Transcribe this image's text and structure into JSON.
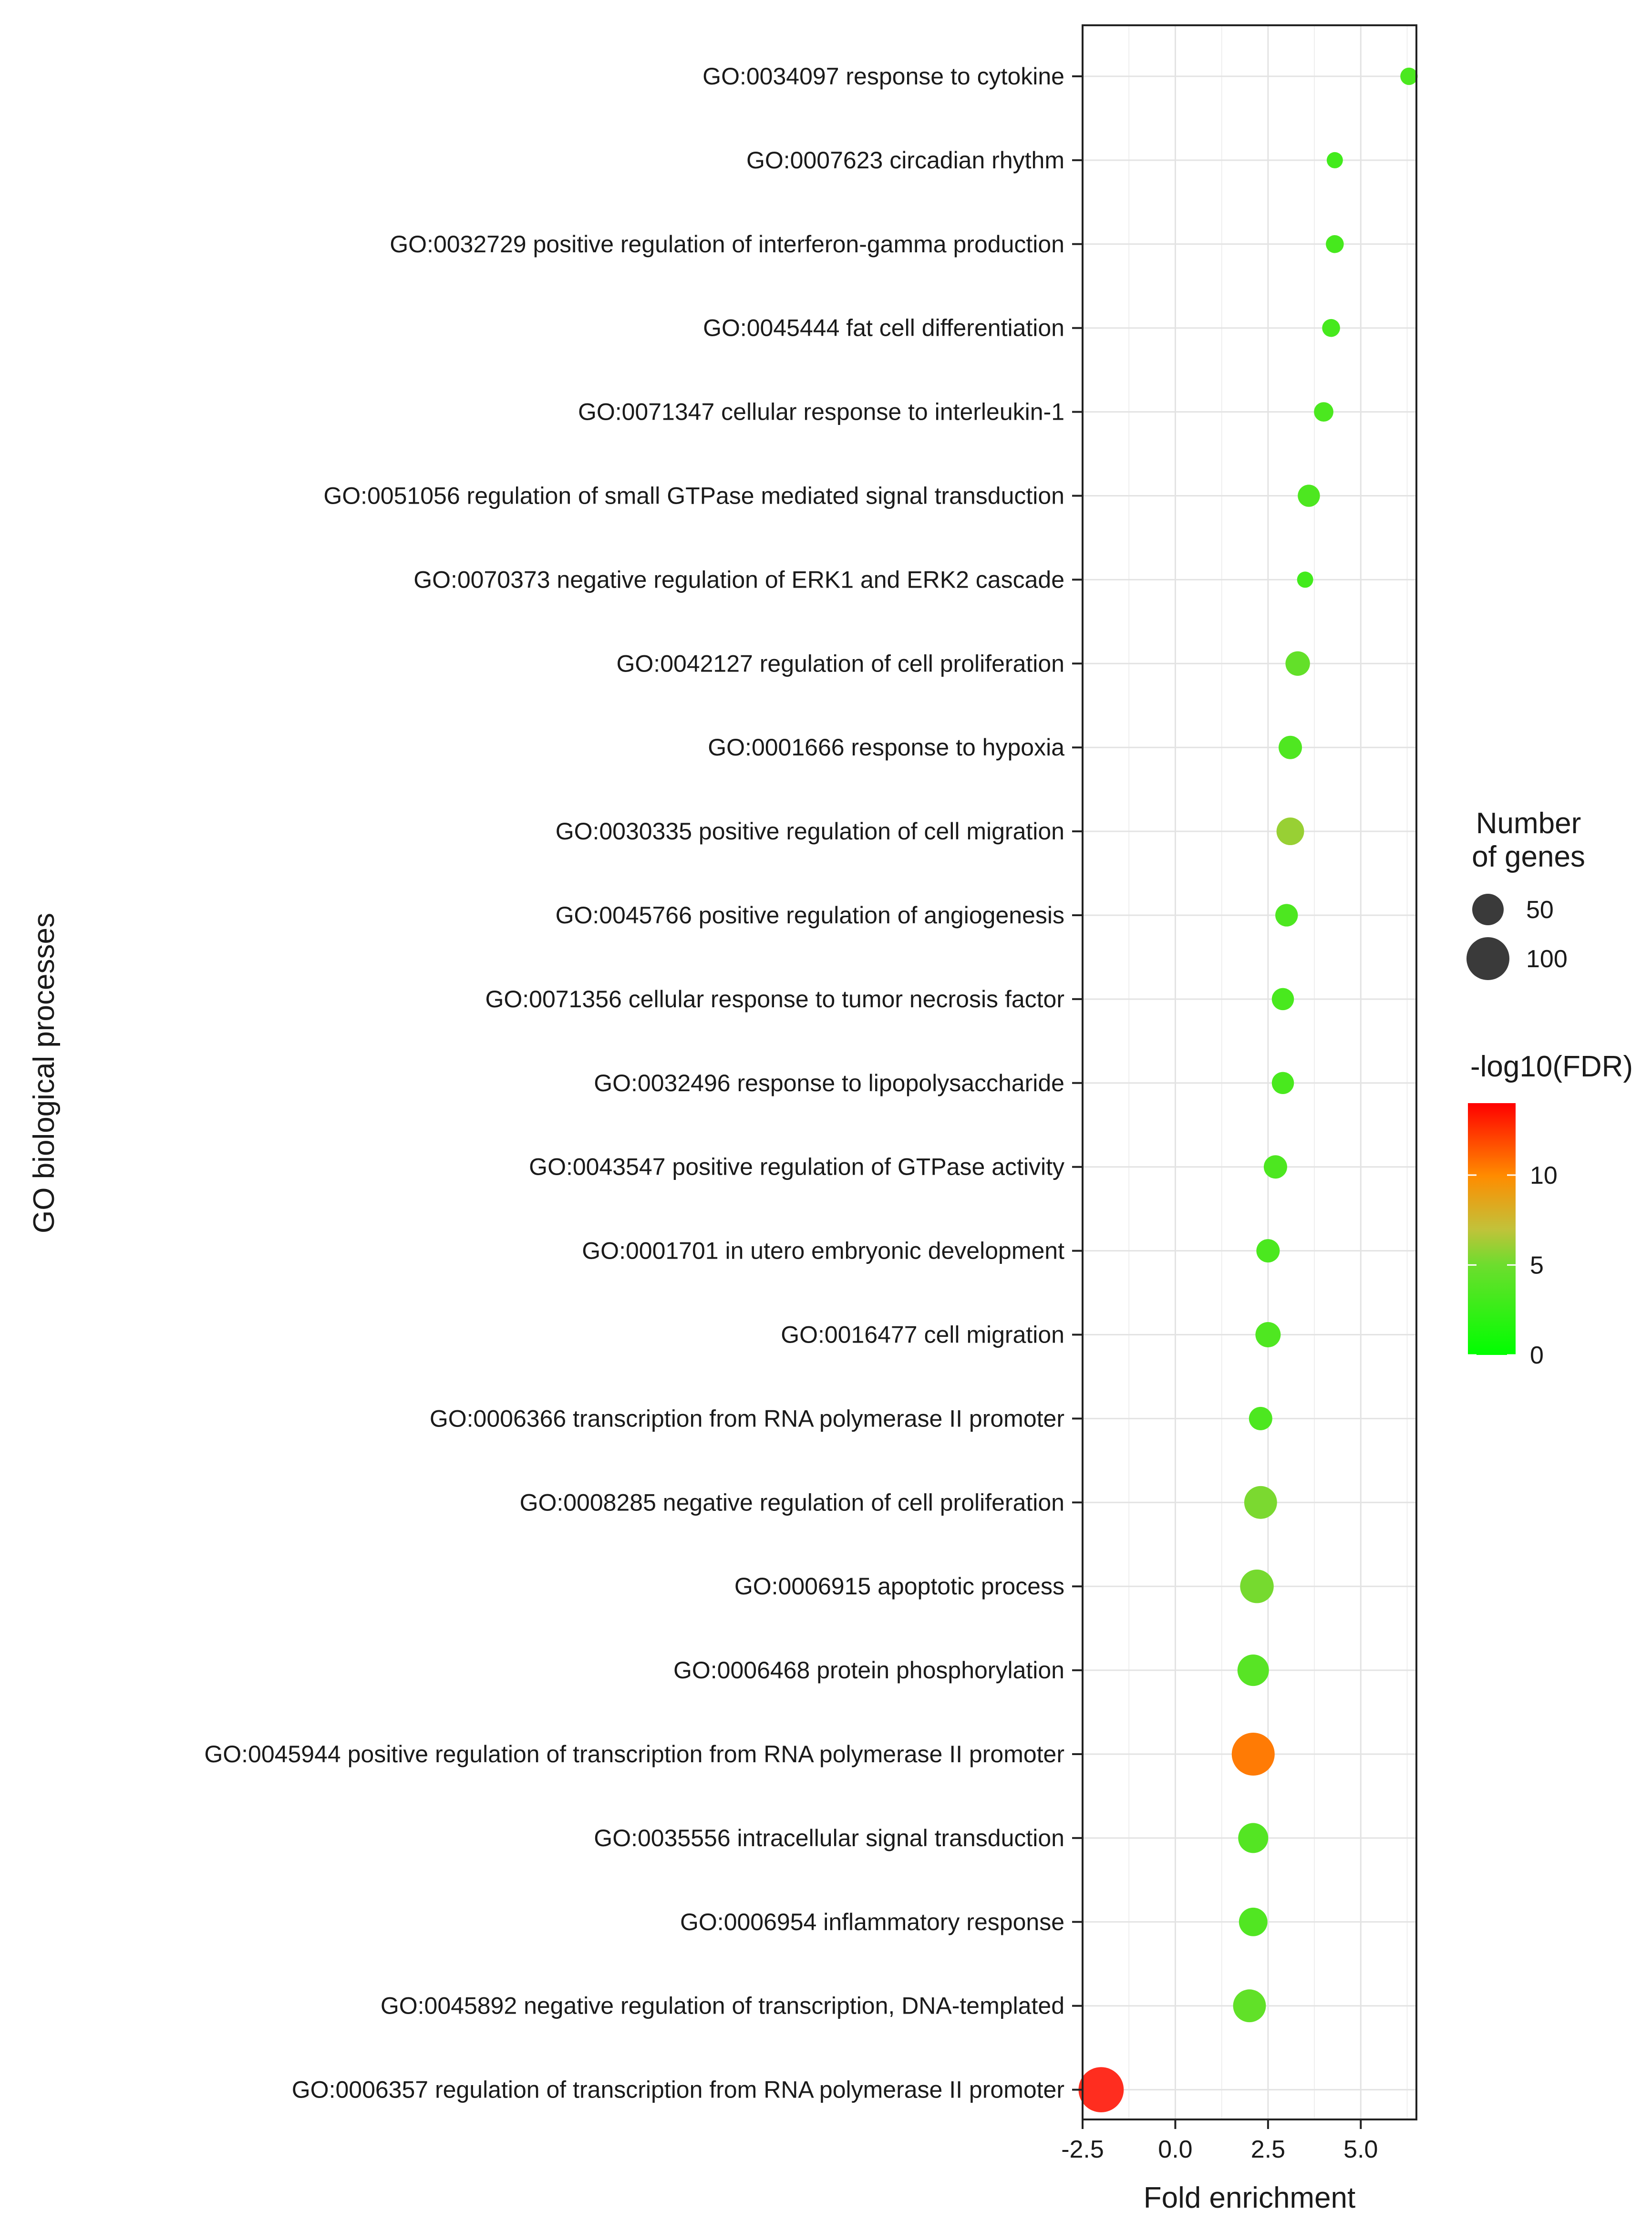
{
  "chart_data": {
    "type": "scatter",
    "title": "",
    "xlabel": "Fold enrichment",
    "ylabel": "GO biological processes",
    "xlim": [
      -2.5,
      6.5
    ],
    "x_ticks": [
      "-2.5",
      "0.0",
      "2.5",
      "5.0"
    ],
    "x_tick_values": [
      -2.5,
      0.0,
      2.5,
      5.0
    ],
    "grid": true,
    "legend": {
      "size_title": "Number\nof genes",
      "size_title_lines": [
        "Number",
        "of genes"
      ],
      "size_entries": [
        {
          "label": "50",
          "genes": 50
        },
        {
          "label": "100",
          "genes": 100
        }
      ],
      "color_title": "-log10(FDR)",
      "color_ticks": [
        "10",
        "5",
        "0"
      ],
      "color_tick_values": [
        10,
        5,
        0
      ],
      "color_range": [
        0,
        14
      ],
      "color_low": "#00ff00",
      "color_high": "#ff0000",
      "placement": "right"
    },
    "points": [
      {
        "term": "GO:0034097 response to cytokine",
        "fold_enrichment": 6.3,
        "genes": 12,
        "neg_log10_fdr": 3.4
      },
      {
        "term": "GO:0007623 circadian rhythm",
        "fold_enrichment": 4.3,
        "genes": 10,
        "neg_log10_fdr": 3.0
      },
      {
        "term": "GO:0032729 positive regulation of interferon-gamma production",
        "fold_enrichment": 4.3,
        "genes": 13,
        "neg_log10_fdr": 3.2
      },
      {
        "term": "GO:0045444 fat cell differentiation",
        "fold_enrichment": 4.2,
        "genes": 13,
        "neg_log10_fdr": 3.2
      },
      {
        "term": "GO:0071347 cellular response to interleukin-1",
        "fold_enrichment": 4.0,
        "genes": 16,
        "neg_log10_fdr": 3.4
      },
      {
        "term": "GO:0051056 regulation of small GTPase mediated signal transduction",
        "fold_enrichment": 3.6,
        "genes": 22,
        "neg_log10_fdr": 3.5
      },
      {
        "term": "GO:0070373 negative regulation of ERK1 and ERK2 cascade",
        "fold_enrichment": 3.5,
        "genes": 10,
        "neg_log10_fdr": 3.0
      },
      {
        "term": "GO:0042127 regulation of cell proliferation",
        "fold_enrichment": 3.3,
        "genes": 28,
        "neg_log10_fdr": 4.5
      },
      {
        "term": "GO:0001666 response to hypoxia",
        "fold_enrichment": 3.1,
        "genes": 25,
        "neg_log10_fdr": 3.6
      },
      {
        "term": "GO:0030335 positive regulation of cell migration",
        "fold_enrichment": 3.1,
        "genes": 37,
        "neg_log10_fdr": 6.0
      },
      {
        "term": "GO:0045766 positive regulation of angiogenesis",
        "fold_enrichment": 3.0,
        "genes": 23,
        "neg_log10_fdr": 3.5
      },
      {
        "term": "GO:0071356 cellular response to tumor necrosis factor",
        "fold_enrichment": 2.9,
        "genes": 22,
        "neg_log10_fdr": 3.3
      },
      {
        "term": "GO:0032496 response to lipopolysaccharide",
        "fold_enrichment": 2.9,
        "genes": 22,
        "neg_log10_fdr": 3.3
      },
      {
        "term": "GO:0043547 positive regulation of GTPase activity",
        "fold_enrichment": 2.7,
        "genes": 25,
        "neg_log10_fdr": 3.5
      },
      {
        "term": "GO:0001701 in utero embryonic development",
        "fold_enrichment": 2.5,
        "genes": 25,
        "neg_log10_fdr": 3.4
      },
      {
        "term": "GO:0016477 cell migration",
        "fold_enrichment": 2.5,
        "genes": 30,
        "neg_log10_fdr": 3.6
      },
      {
        "term": "GO:0006366 transcription from RNA polymerase II promoter",
        "fold_enrichment": 2.3,
        "genes": 25,
        "neg_log10_fdr": 3.5
      },
      {
        "term": "GO:0008285 negative regulation of cell proliferation",
        "fold_enrichment": 2.3,
        "genes": 55,
        "neg_log10_fdr": 5.3
      },
      {
        "term": "GO:0006915 apoptotic process",
        "fold_enrichment": 2.2,
        "genes": 58,
        "neg_log10_fdr": 5.2
      },
      {
        "term": "GO:0006468 protein phosphorylation",
        "fold_enrichment": 2.1,
        "genes": 50,
        "neg_log10_fdr": 4.0
      },
      {
        "term": "GO:0045944 positive regulation of transcription from RNA polymerase II promoter",
        "fold_enrichment": 2.1,
        "genes": 100,
        "neg_log10_fdr": 10.7
      },
      {
        "term": "GO:0035556 intracellular signal transduction",
        "fold_enrichment": 2.1,
        "genes": 45,
        "neg_log10_fdr": 3.8
      },
      {
        "term": "GO:0006954 inflammatory response",
        "fold_enrichment": 2.1,
        "genes": 40,
        "neg_log10_fdr": 3.7
      },
      {
        "term": "GO:0045892 negative regulation of transcription, DNA-templated",
        "fold_enrichment": 2.0,
        "genes": 55,
        "neg_log10_fdr": 4.4
      },
      {
        "term": "GO:0006357 regulation of transcription from RNA polymerase II promoter",
        "fold_enrichment": -2.0,
        "genes": 112,
        "neg_log10_fdr": 14.0
      }
    ]
  }
}
